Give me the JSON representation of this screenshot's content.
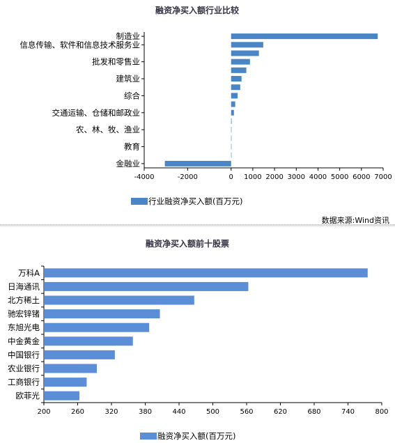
{
  "chart_data": [
    {
      "type": "bar",
      "orientation": "horizontal",
      "title": "融资净买入额行业比较",
      "categories": [
        "制造业",
        "信息传输、软件和信息技术服务业",
        "",
        "批发和零售业",
        "",
        "建筑业",
        "",
        "综合",
        "",
        "交通运输、仓储和邮政业",
        "",
        "农、林、牧、渔业",
        "",
        "教育",
        "",
        "金融业"
      ],
      "category_labels": [
        "制造业",
        "信息传输、软件和信息技术服务业",
        "批发和零售业",
        "建筑业",
        "综合",
        "交通运输、仓储和邮政业",
        "农、林、牧、渔业",
        "教育",
        "金融业"
      ],
      "values": [
        6750,
        1480,
        1280,
        870,
        700,
        480,
        420,
        300,
        190,
        130,
        25,
        15,
        10,
        8,
        5,
        -3050
      ],
      "xlim": [
        -4000,
        7000
      ],
      "xticks": [
        "-4000",
        "-2000",
        "0",
        "1000",
        "2000",
        "3000",
        "4000",
        "5000",
        "6000",
        "7000"
      ],
      "xtick_values": [
        -4000,
        -2000,
        0,
        1000,
        2000,
        3000,
        4000,
        5000,
        6000,
        7000
      ],
      "series": [
        {
          "name": "行业融资净买入额(百万元)"
        }
      ],
      "color": "#4a86c5",
      "legend_position": "bottom",
      "grid": false,
      "source_note": "数据来源:Wind资讯"
    },
    {
      "type": "bar",
      "orientation": "horizontal",
      "title": "融资净买入额前十股票",
      "categories": [
        "万科A",
        "日海通讯",
        "北方稀土",
        "驰宏锌锗",
        "东旭光电",
        "中金黄金",
        "中国银行",
        "农业银行",
        "工商银行",
        "欧菲光"
      ],
      "values": [
        775,
        563,
        467,
        406,
        387,
        358,
        326,
        294,
        276,
        263
      ],
      "xlim": [
        200,
        800
      ],
      "xticks": [
        "200",
        "260",
        "320",
        "380",
        "440",
        "500",
        "560",
        "620",
        "680",
        "740",
        "800"
      ],
      "xtick_values": [
        200,
        260,
        320,
        380,
        440,
        500,
        560,
        620,
        680,
        740,
        800
      ],
      "series": [
        {
          "name": "融资净买入额(百万元)"
        }
      ],
      "color": "#5b8ed6",
      "legend_position": "bottom",
      "grid": false
    }
  ]
}
